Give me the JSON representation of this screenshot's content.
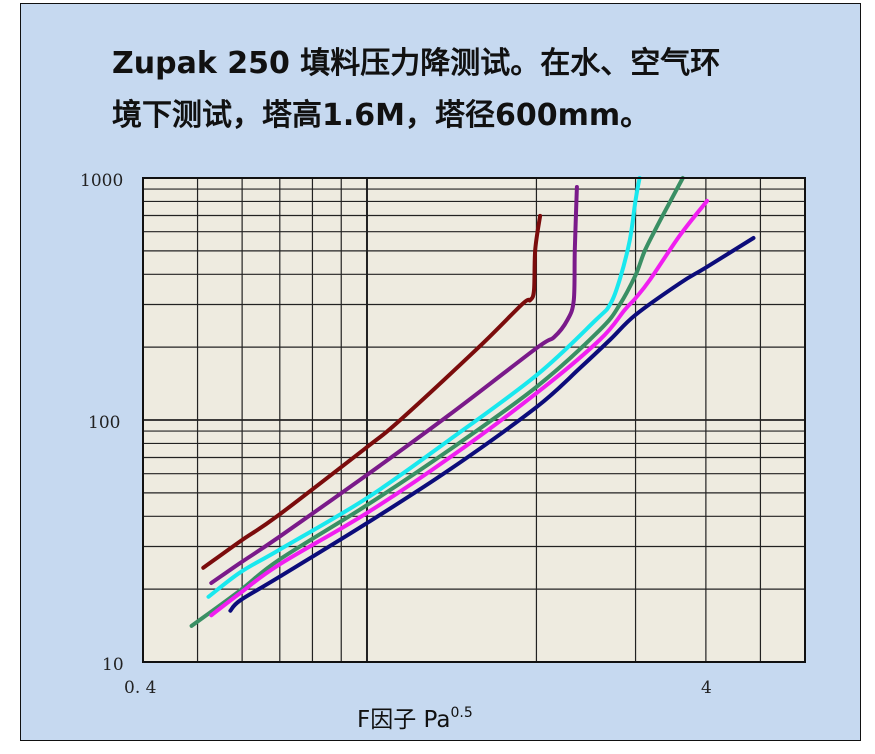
{
  "title": {
    "line1": "Zupak 250 填料压力降测试。在水、空气环",
    "line2": "境下测试，塔高1.6M，塔径600mm。"
  },
  "axes": {
    "x_label_main": "F因子  Pa",
    "x_label_exp": "0.5",
    "x_tick_labels": [
      "0. 4",
      "4"
    ],
    "y_tick_labels": [
      "1000",
      "100",
      "10"
    ]
  },
  "colors": {
    "slide_bg": "#c6d9f0",
    "plot_bg": "#eeebe0",
    "grid": "#222222"
  },
  "chart_data": {
    "type": "line",
    "title": "Zupak 250 填料压力降测试。在水、空气环境下测试，塔高1.6M，塔径600mm。",
    "xlabel": "F因子 Pa^0.5",
    "ylabel": "",
    "xscale": "log",
    "yscale": "log",
    "xlim": [
      0.4,
      6
    ],
    "ylim": [
      10,
      1000
    ],
    "x_ticks_labeled": [
      0.4,
      4
    ],
    "y_ticks_labeled": [
      10,
      100,
      1000
    ],
    "x_gridlines": [
      0.5,
      0.6,
      0.7,
      0.8,
      0.9,
      1,
      2,
      3,
      4,
      5
    ],
    "y_gridlines": [
      20,
      30,
      40,
      50,
      60,
      70,
      80,
      90,
      100,
      200,
      300,
      400,
      500,
      600,
      700,
      800,
      900
    ],
    "grid": true,
    "legend": null,
    "series": [
      {
        "name": "curve-darkred",
        "color": "#7b0c0c",
        "x": [
          0.512,
          0.596,
          0.697,
          1.0,
          1.14,
          1.58,
          1.89,
          1.95,
          1.98,
          1.99,
          2.03
        ],
        "y": [
          24.5,
          31.6,
          40.5,
          77.3,
          99,
          200,
          302,
          313,
          344,
          504,
          697
        ]
      },
      {
        "name": "curve-purple",
        "color": "#7a1a8a",
        "x": [
          0.529,
          0.596,
          0.697,
          1.0,
          1.4,
          2.0,
          2.15,
          2.27,
          2.33,
          2.34,
          2.36
        ],
        "y": [
          21.2,
          25.7,
          32.8,
          59.3,
          105,
          198,
          220,
          259,
          313,
          504,
          918
        ]
      },
      {
        "name": "curve-cyan",
        "color": "#19e8ee",
        "x": [
          0.523,
          0.596,
          0.697,
          1.0,
          1.4,
          2.0,
          2.55,
          2.7,
          2.81,
          2.93,
          3.0,
          3.05
        ],
        "y": [
          18.6,
          23.5,
          29.0,
          47.6,
          82.7,
          153,
          259,
          299,
          379,
          554,
          811,
          1000
        ]
      },
      {
        "name": "curve-green",
        "color": "#3a8f64",
        "x": [
          0.488,
          0.596,
          0.697,
          1.0,
          1.4,
          2.0,
          2.59,
          2.81,
          3.0,
          3.12,
          3.32,
          3.64
        ],
        "y": [
          14.1,
          19.8,
          26.4,
          44.5,
          75.2,
          137,
          235,
          299,
          397,
          504,
          670,
          1000
        ]
      },
      {
        "name": "curve-magenta",
        "color": "#f01ef0",
        "x": [
          0.529,
          0.596,
          0.697,
          1.0,
          1.4,
          2.0,
          2.59,
          2.87,
          3.0,
          3.18,
          3.6,
          4.02
        ],
        "y": [
          15.6,
          19.3,
          25.2,
          41.3,
          69.7,
          129,
          214,
          285,
          319,
          379,
          581,
          804
        ]
      },
      {
        "name": "curve-navy",
        "color": "#0c0c7a",
        "x": [
          0.572,
          0.596,
          0.697,
          1.0,
          1.4,
          2.0,
          2.39,
          2.7,
          3.0,
          3.6,
          3.99,
          4.86
        ],
        "y": [
          16.3,
          18.0,
          22.4,
          37.5,
          62.2,
          113,
          164,
          214,
          272,
          368,
          425,
          565
        ]
      }
    ]
  }
}
